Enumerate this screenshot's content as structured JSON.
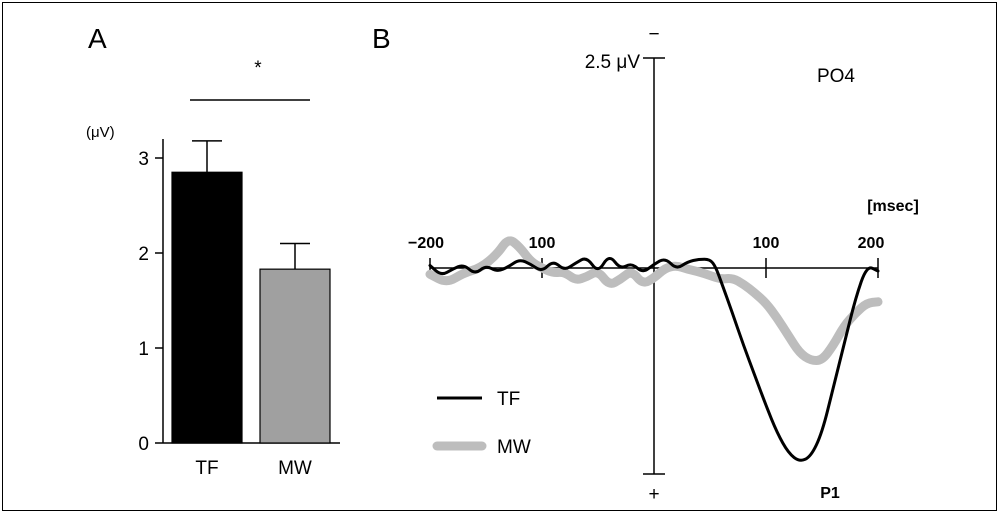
{
  "chart_data": [
    {
      "panel": "A",
      "type": "bar",
      "unit_label": "(μV)",
      "categories": [
        "TF",
        "MW"
      ],
      "values": [
        2.85,
        1.83
      ],
      "errors": [
        0.33,
        0.27
      ],
      "bar_colors": [
        "#000000",
        "#a0a0a0"
      ],
      "ylim": [
        0,
        3.2
      ],
      "yticks": [
        "0",
        "1",
        "2",
        "3"
      ],
      "significance": "*"
    },
    {
      "panel": "B",
      "type": "line",
      "electrode": "PO4",
      "x_unit": "[msec]",
      "y_scale_label": "2.5 μV",
      "negative_sign": "−",
      "positive_sign": "+",
      "x_tick_labels": [
        "−200",
        "100",
        "100",
        "200"
      ],
      "peak_label": "P1",
      "series": [
        {
          "name": "TF",
          "color": "#000000",
          "points": [
            [
              -200,
              0.1
            ],
            [
              -190,
              -0.3
            ],
            [
              -180,
              -0.05
            ],
            [
              -170,
              0.15
            ],
            [
              -160,
              -0.25
            ],
            [
              -150,
              0.1
            ],
            [
              -140,
              -0.15
            ],
            [
              -130,
              0.05
            ],
            [
              -120,
              0.35
            ],
            [
              -110,
              0.15
            ],
            [
              -100,
              -0.15
            ],
            [
              -90,
              0.3
            ],
            [
              -80,
              -0.1
            ],
            [
              -70,
              0.2
            ],
            [
              -60,
              0.45
            ],
            [
              -50,
              -0.2
            ],
            [
              -40,
              0.55
            ],
            [
              -30,
              -0.05
            ],
            [
              -20,
              0.2
            ],
            [
              -10,
              -0.2
            ],
            [
              0,
              0.15
            ],
            [
              10,
              0.4
            ],
            [
              20,
              -0.05
            ],
            [
              30,
              0.25
            ],
            [
              40,
              0.35
            ],
            [
              50,
              0.35
            ],
            [
              55,
              0.05
            ],
            [
              60,
              -0.55
            ],
            [
              70,
              -1.8
            ],
            [
              80,
              -3.1
            ],
            [
              90,
              -4.3
            ],
            [
              100,
              -5.5
            ],
            [
              110,
              -6.6
            ],
            [
              120,
              -7.4
            ],
            [
              130,
              -7.75
            ],
            [
              140,
              -7.55
            ],
            [
              150,
              -6.6
            ],
            [
              160,
              -4.8
            ],
            [
              170,
              -3.0
            ],
            [
              180,
              -1.2
            ],
            [
              190,
              0.1
            ],
            [
              200,
              -0.12
            ]
          ]
        },
        {
          "name": "MW",
          "color": "#bdbdbd",
          "points": [
            [
              -200,
              -0.25
            ],
            [
              -185,
              -0.6
            ],
            [
              -170,
              -0.2
            ],
            [
              -155,
              0.0
            ],
            [
              -140,
              0.55
            ],
            [
              -130,
              1.2
            ],
            [
              -120,
              0.85
            ],
            [
              -110,
              0.25
            ],
            [
              -100,
              0.0
            ],
            [
              -90,
              -0.2
            ],
            [
              -80,
              -0.15
            ],
            [
              -70,
              -0.5
            ],
            [
              -60,
              -0.35
            ],
            [
              -50,
              -0.1
            ],
            [
              -40,
              -0.7
            ],
            [
              -30,
              -0.45
            ],
            [
              -20,
              -0.1
            ],
            [
              -10,
              -0.65
            ],
            [
              0,
              -0.4
            ],
            [
              10,
              0.0
            ],
            [
              20,
              0.1
            ],
            [
              30,
              -0.05
            ],
            [
              40,
              -0.15
            ],
            [
              50,
              -0.3
            ],
            [
              60,
              -0.45
            ],
            [
              70,
              -0.4
            ],
            [
              80,
              -0.65
            ],
            [
              90,
              -1.0
            ],
            [
              100,
              -1.4
            ],
            [
              110,
              -2.0
            ],
            [
              120,
              -2.7
            ],
            [
              130,
              -3.4
            ],
            [
              140,
              -3.7
            ],
            [
              150,
              -3.7
            ],
            [
              160,
              -3.1
            ],
            [
              170,
              -2.3
            ],
            [
              180,
              -1.8
            ],
            [
              190,
              -1.4
            ],
            [
              200,
              -1.35
            ]
          ]
        }
      ]
    }
  ]
}
